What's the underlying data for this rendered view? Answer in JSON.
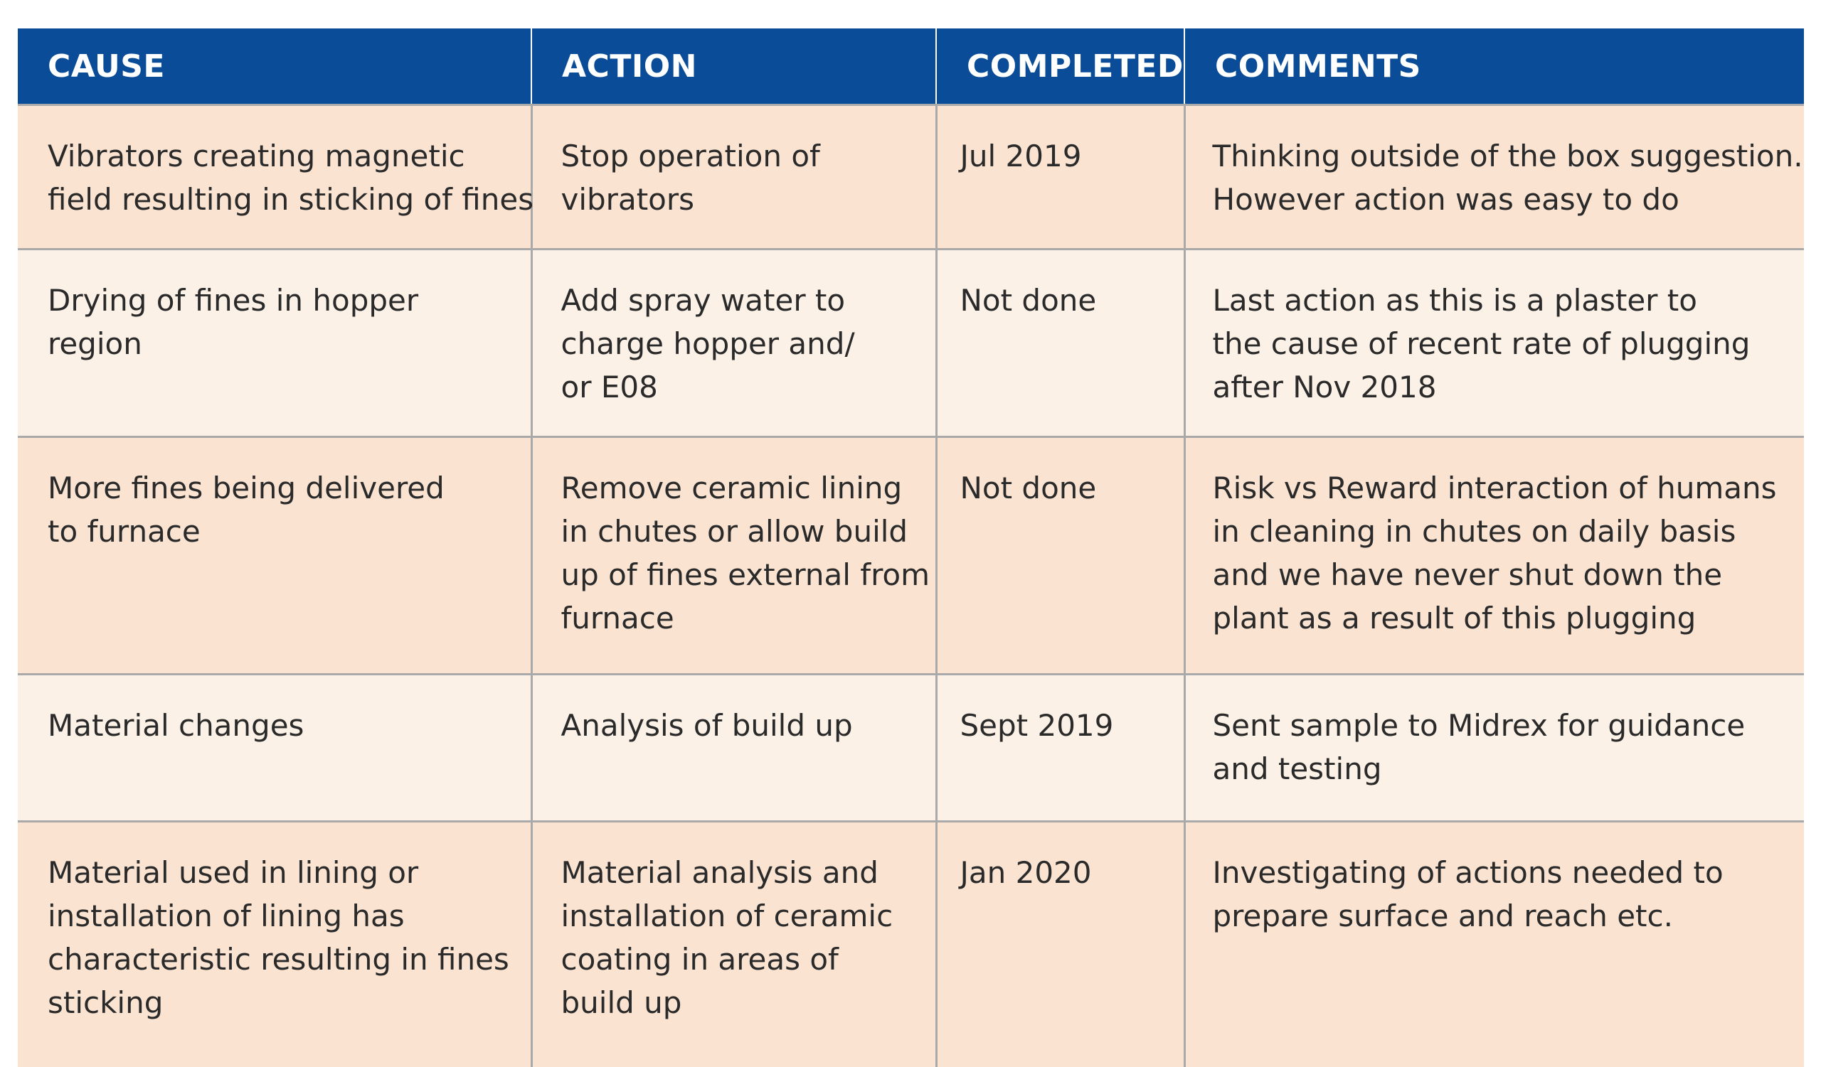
{
  "table": {
    "headers": [
      "CAUSE",
      "ACTION",
      "COMPLETED",
      "COMMENTS"
    ],
    "rows": [
      {
        "cause": [
          "Vibrators creating magnetic",
          "field resulting in sticking of fines"
        ],
        "action": [
          "Stop operation of",
          "vibrators"
        ],
        "completed": "Jul 2019",
        "comments": [
          "Thinking outside of the box suggestion.",
          "However action was easy to do"
        ]
      },
      {
        "cause": [
          "Drying of fines in hopper",
          "region"
        ],
        "action": [
          "Add spray water to",
          "charge hopper and/",
          "or E08"
        ],
        "completed": "Not done",
        "comments": [
          "Last action as this is a plaster to",
          "the cause of recent rate of plugging",
          "after Nov 2018"
        ]
      },
      {
        "cause": [
          "More fines being delivered",
          "to furnace"
        ],
        "action": [
          "Remove ceramic lining",
          "in chutes or allow build",
          "up of fines external from",
          "furnace"
        ],
        "completed": "Not done",
        "comments": [
          "Risk vs Reward interaction of humans",
          "in cleaning in chutes on daily basis",
          "and we have never shut down the",
          "plant as a result of this plugging"
        ]
      },
      {
        "cause": [
          "Material changes"
        ],
        "action": [
          "Analysis of build up"
        ],
        "completed": "Sept 2019",
        "comments": [
          "Sent sample to Midrex for guidance",
          "and testing"
        ]
      },
      {
        "cause": [
          "Material used in lining or",
          "installation of lining has",
          "characteristic resulting in fines",
          "sticking"
        ],
        "action": [
          "Material analysis and",
          "installation of ceramic",
          "coating in areas of",
          "build up"
        ],
        "completed": "Jan 2020",
        "comments": [
          "Investigating of actions needed to",
          "prepare surface and reach etc."
        ]
      }
    ]
  },
  "colors": {
    "header_bg": "#0b4c99",
    "header_text": "#ffffff",
    "row_odd_bg": "#fae3d1",
    "row_even_bg": "#fcf1e6",
    "grid_line": "#a9a9a9"
  }
}
